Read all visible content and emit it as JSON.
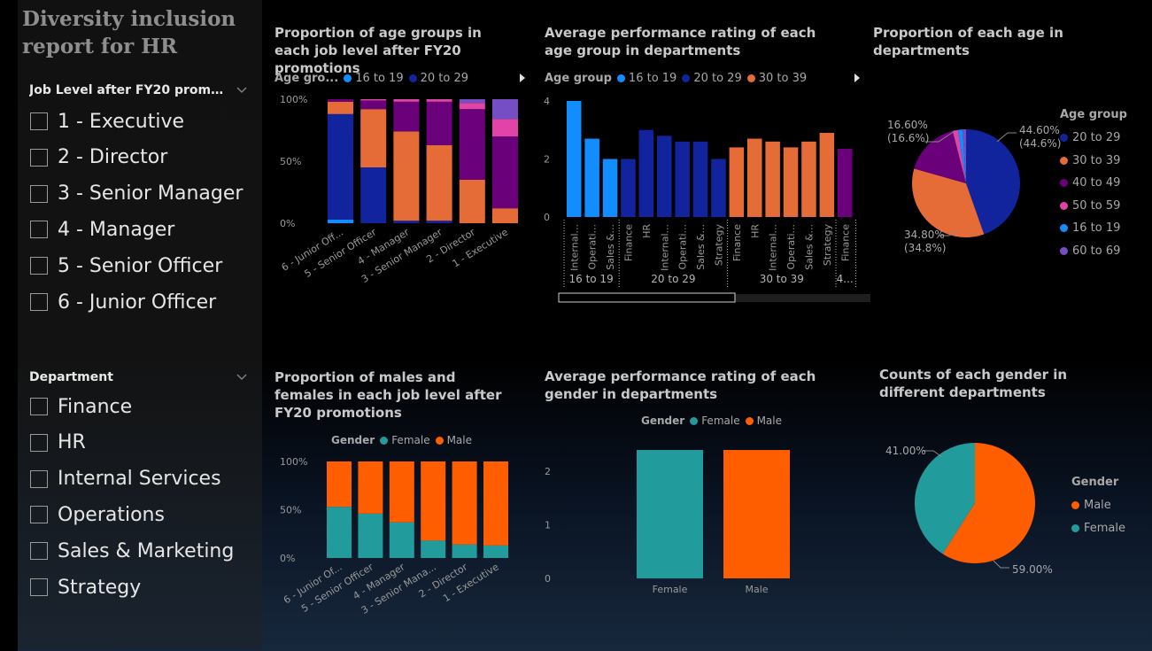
{
  "report": {
    "title": "Diversity inclusion\nreport for HR"
  },
  "slicers": {
    "job_level": {
      "header": "Job Level after FY20 promoti...",
      "options": [
        "1 - Executive",
        "2 - Director",
        "3 - Senior Manager",
        "4 - Manager",
        "5 - Senior Officer",
        "6 - Junior Officer"
      ]
    },
    "department": {
      "header": "Department",
      "options": [
        "Finance",
        "HR",
        "Internal Services",
        "Operations",
        "Sales & Marketing",
        "Strategy"
      ]
    }
  },
  "colors": {
    "age_16_19": "#118dff",
    "age_20_29": "#12239e",
    "age_30_39": "#e66c37",
    "age_40_49": "#6b007b",
    "age_50_59": "#e044a7",
    "age_60_69": "#744ec2",
    "female": "#229b9c",
    "male": "#ff5e00"
  },
  "charts": {
    "age_by_level": {
      "title": "Proportion of age groups in each job level after FY20 promotions",
      "legend_title": "Age gro...",
      "legend_items": [
        "16 to 19",
        "20 to 29"
      ],
      "y_ticks": [
        "100%",
        "50%",
        "0%"
      ]
    },
    "perf_by_age": {
      "title": "Average performance rating of each age group in departments",
      "legend_title": "Age group",
      "legend_items": [
        "16 to 19",
        "20 to 29",
        "30 to 39"
      ],
      "y_ticks": [
        "4",
        "2",
        "0"
      ],
      "group_labels": [
        "16 to 19",
        "20 to 29",
        "30 to 39",
        "4..."
      ]
    },
    "age_pie": {
      "title": "Proportion of each age in departments",
      "legend_title": "Age group",
      "legend_items": [
        "20 to 29",
        "30 to 39",
        "40 to 49",
        "50 to 59",
        "16 to 19",
        "60 to 69"
      ],
      "label_top_left": "16.60%\n(16.6%)",
      "label_top_right": "44.60%\n(44.6%)",
      "label_bottom": "34.80%\n(34.8%)"
    },
    "gender_by_level": {
      "title": "Proportion of males and females in each job level after FY20 promotions",
      "legend_title": "Gender",
      "legend_items": [
        "Female",
        "Male"
      ],
      "y_ticks": [
        "100%",
        "50%",
        "0%"
      ]
    },
    "perf_by_gender": {
      "title": "Average performance rating of each gender in departments",
      "legend_title": "Gender",
      "legend_items": [
        "Female",
        "Male"
      ],
      "y_ticks": [
        "2",
        "1",
        "0"
      ]
    },
    "gender_pie": {
      "title": "Counts of each gender in different departments",
      "legend_title": "Gender",
      "legend_items": [
        "Male",
        "Female"
      ],
      "label_left": "41.00%",
      "label_right": "59.00%"
    }
  },
  "chart_data": [
    {
      "type": "bar",
      "subtype": "100% stacked column",
      "categories": [
        "6 - Junior Off...",
        "5 - Senior Officer",
        "4 - Manager",
        "3 - Senior Manager",
        "2 - Director",
        "1 - Executive"
      ],
      "series": [
        {
          "name": "16 to 19",
          "values": [
            0.03,
            0.0,
            0.0,
            0.0,
            0.0,
            0.0
          ]
        },
        {
          "name": "20 to 29",
          "values": [
            0.85,
            0.45,
            0.02,
            0.02,
            0.0,
            0.0
          ]
        },
        {
          "name": "30 to 39",
          "values": [
            0.1,
            0.47,
            0.72,
            0.61,
            0.35,
            0.12
          ]
        },
        {
          "name": "40 to 49",
          "values": [
            0.02,
            0.07,
            0.24,
            0.35,
            0.57,
            0.58
          ]
        },
        {
          "name": "50 to 59",
          "values": [
            0.0,
            0.01,
            0.02,
            0.02,
            0.05,
            0.14
          ]
        },
        {
          "name": "60 to 69",
          "values": [
            0.0,
            0.0,
            0.0,
            0.0,
            0.03,
            0.16
          ]
        }
      ],
      "ylim": [
        0,
        1
      ]
    },
    {
      "type": "bar",
      "subtype": "grouped column",
      "categories": [
        "Internal...",
        "Operati...",
        "Sales &...",
        "Finance",
        "HR",
        "Internal...",
        "Operati...",
        "Sales &...",
        "Strategy",
        "Finance",
        "HR",
        "Internal...",
        "Operati...",
        "Sales &...",
        "Strategy",
        "Finance"
      ],
      "groups": [
        "16 to 19",
        "16 to 19",
        "16 to 19",
        "20 to 29",
        "20 to 29",
        "20 to 29",
        "20 to 29",
        "20 to 29",
        "20 to 29",
        "30 to 39",
        "30 to 39",
        "30 to 39",
        "30 to 39",
        "30 to 39",
        "30 to 39",
        "4..."
      ],
      "values": [
        4.0,
        2.7,
        2.0,
        2.0,
        3.0,
        2.8,
        2.6,
        2.6,
        2.0,
        2.4,
        2.7,
        2.6,
        2.4,
        2.6,
        2.9,
        2.35
      ],
      "ylim": [
        0,
        4
      ]
    },
    {
      "type": "pie",
      "labels": [
        "20 to 29",
        "30 to 39",
        "40 to 49",
        "50 to 59",
        "16 to 19",
        "60 to 69"
      ],
      "values": [
        44.6,
        34.8,
        16.6,
        1.6,
        1.4,
        1.0
      ]
    },
    {
      "type": "bar",
      "subtype": "100% stacked column",
      "categories": [
        "6 - Junior Of...",
        "5 - Senior Officer",
        "4 - Manager",
        "3 - Senior Mana...",
        "2 - Director",
        "1 - Executive"
      ],
      "series": [
        {
          "name": "Female",
          "values": [
            0.53,
            0.46,
            0.37,
            0.18,
            0.14,
            0.13
          ]
        },
        {
          "name": "Male",
          "values": [
            0.47,
            0.54,
            0.63,
            0.82,
            0.86,
            0.87
          ]
        }
      ],
      "ylim": [
        0,
        1
      ]
    },
    {
      "type": "bar",
      "categories": [
        "Female",
        "Male"
      ],
      "values": [
        2.4,
        2.4
      ],
      "ylim": [
        0,
        2.5
      ]
    },
    {
      "type": "pie",
      "labels": [
        "Male",
        "Female"
      ],
      "values": [
        59.0,
        41.0
      ]
    }
  ]
}
